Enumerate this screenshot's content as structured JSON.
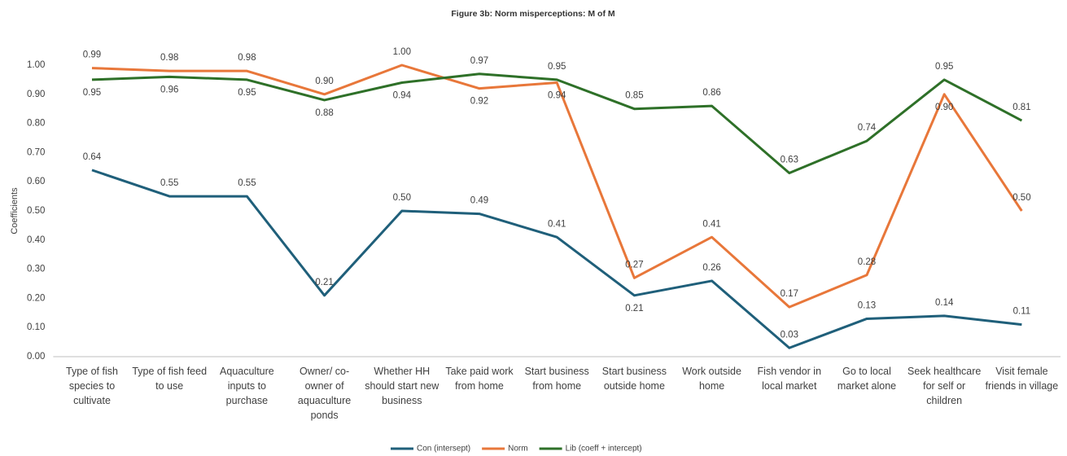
{
  "chart_data": {
    "type": "line",
    "title": "Figure 3b: Norm misperceptions: M of M",
    "y_label": "Coefficients",
    "categories": [
      "Type of fish species to cultivate",
      "Type of fish feed to use",
      "Aquaculture inputs to purchase",
      "Owner/ co-owner of aquaculture ponds",
      "Whether HH should start new business",
      "Take paid work from home",
      "Start business from home",
      "Start business outside home",
      "Work outside home",
      "Fish vendor in local market",
      "Go to local market alone",
      "Seek healthcare for self or children",
      "Visit female friends in village"
    ],
    "series": [
      {
        "name": "Con (intersept)",
        "color": "#1f5f7a",
        "values": [
          0.64,
          0.55,
          0.55,
          0.21,
          0.5,
          0.49,
          0.41,
          0.21,
          0.26,
          0.03,
          0.13,
          0.14,
          0.11
        ],
        "value_labels": [
          "0.64",
          "0.55",
          "0.55",
          "0.21",
          "0.50",
          "0.49",
          "0.41",
          "0.21",
          "0.26",
          "0.03",
          "0.13",
          "0.14",
          "0.11"
        ]
      },
      {
        "name": "Norm",
        "color": "#e8773a",
        "values": [
          0.99,
          0.98,
          0.98,
          0.9,
          1.0,
          0.92,
          0.94,
          0.27,
          0.41,
          0.17,
          0.28,
          0.9,
          0.5
        ],
        "value_labels": [
          "0.99",
          "0.98",
          "0.98",
          "0.90",
          "1.00",
          "0.92",
          "0.94",
          "0.27",
          "0.41",
          "0.17",
          "0.28",
          "0.90",
          "0.50"
        ]
      },
      {
        "name": "Lib (coeff + intercept)",
        "color": "#2e7028",
        "values": [
          0.95,
          0.96,
          0.95,
          0.88,
          0.94,
          0.97,
          0.95,
          0.85,
          0.86,
          0.63,
          0.74,
          0.95,
          0.81
        ],
        "value_labels": [
          "0.95",
          "0.96",
          "0.95",
          "0.88",
          "0.94",
          "0.97",
          "0.95",
          "0.85",
          "0.86",
          "0.63",
          "0.74",
          "0.95",
          "0.81"
        ]
      }
    ],
    "ylim": [
      0,
      1.05
    ],
    "yticks": [
      {
        "value": 0,
        "label": "0.00"
      },
      {
        "value": 0.1,
        "label": "0.10"
      },
      {
        "value": 0.2,
        "label": "0.20"
      },
      {
        "value": 0.3,
        "label": "0.30"
      },
      {
        "value": 0.4,
        "label": "0.40"
      },
      {
        "value": 0.5,
        "label": "0.50"
      },
      {
        "value": 0.6,
        "label": "0.60"
      },
      {
        "value": 0.7,
        "label": "0.70"
      },
      {
        "value": 0.8,
        "label": "0.80"
      },
      {
        "value": 0.9,
        "label": "0.90"
      },
      {
        "value": 1.0,
        "label": "1.00"
      }
    ],
    "grid": false,
    "legend": "bottom"
  }
}
